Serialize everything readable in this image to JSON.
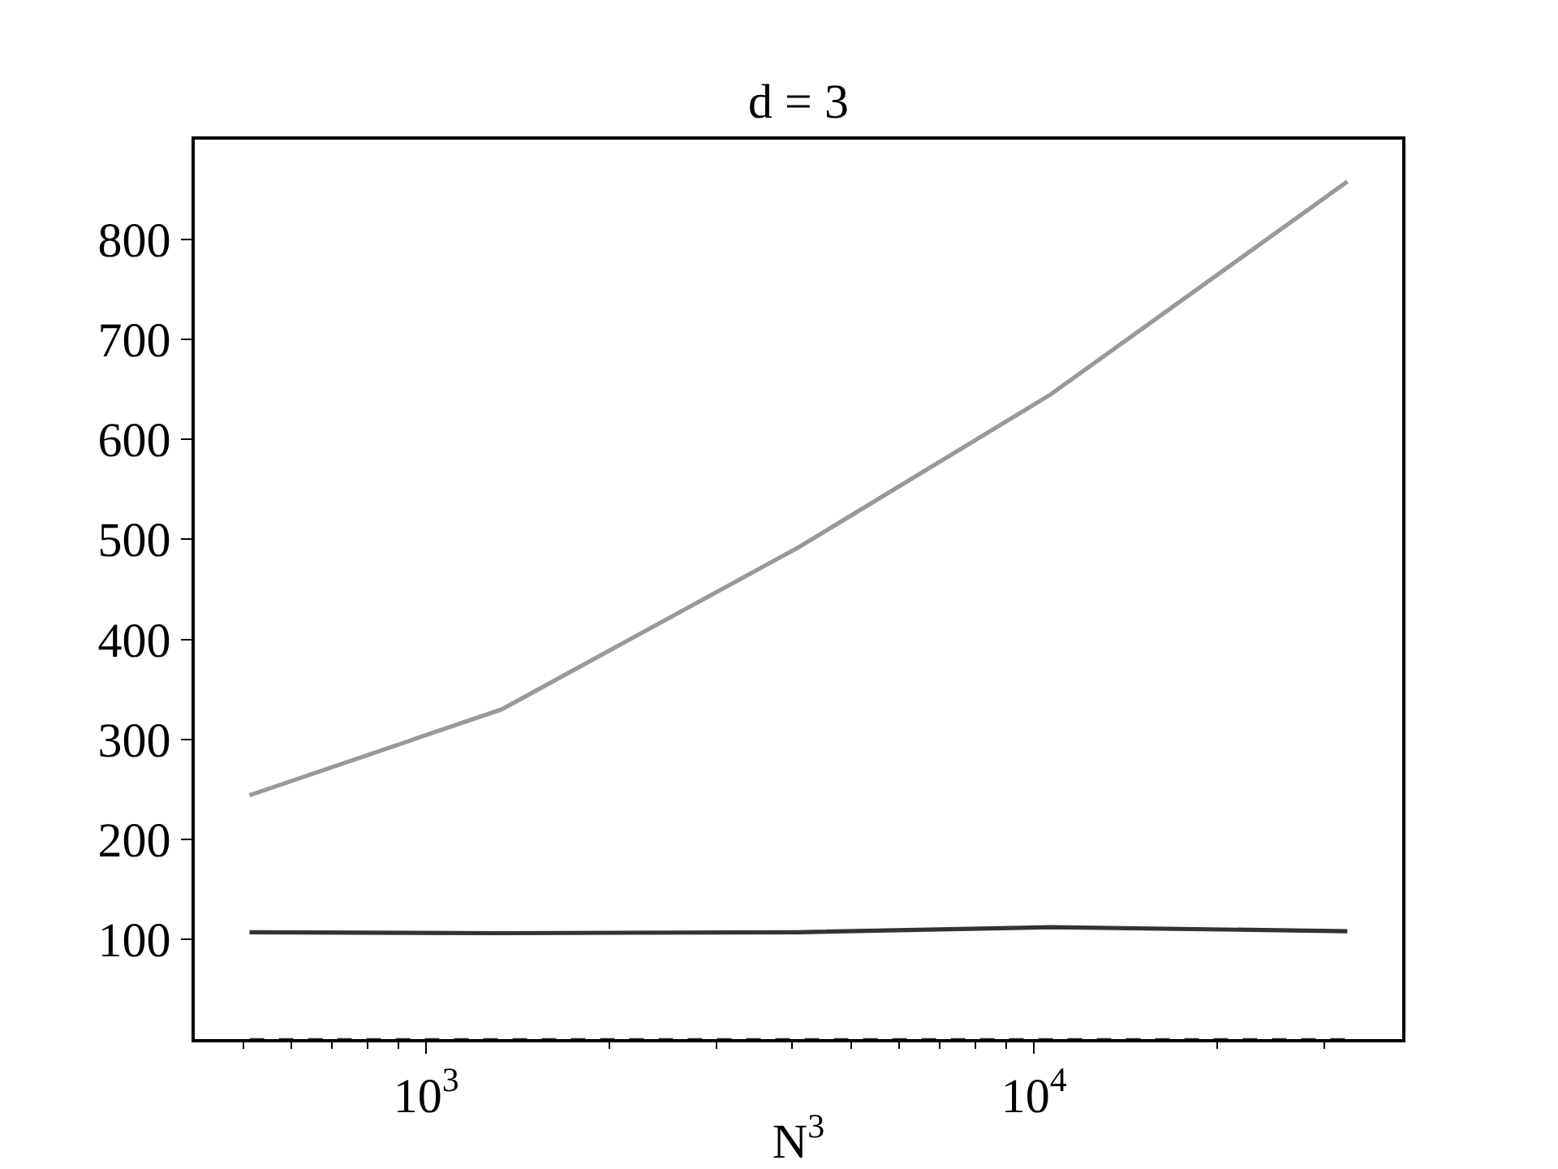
{
  "chart_data": {
    "type": "line",
    "title": "d = 3",
    "xlabel": "N$^{3}$",
    "x": [
      512,
      1331,
      4096,
      10648,
      32768
    ],
    "series": [
      {
        "color": "#999999",
        "values": [
          244,
          330,
          492,
          645,
          858
        ]
      },
      {
        "color": "#333333",
        "values": [
          107,
          106,
          107,
          112,
          108
        ]
      },
      {
        "color": "#333333",
        "line_style": "dashed",
        "values": [
          0,
          0,
          0,
          0,
          0
        ]
      }
    ],
    "log": "x",
    "xlim": [
      416,
      40340
    ],
    "xticks": [
      {
        "value": 500,
        "label": null
      },
      {
        "value": 600,
        "label": null
      },
      {
        "value": 700,
        "label": null
      },
      {
        "value": 800,
        "label": null
      },
      {
        "value": 900,
        "label": null
      },
      {
        "value": 1000,
        "label": "10$^{3}$"
      },
      {
        "value": 2000,
        "label": null
      },
      {
        "value": 3000,
        "label": null
      },
      {
        "value": 4000,
        "label": null
      },
      {
        "value": 5000,
        "label": null
      },
      {
        "value": 6000,
        "label": null
      },
      {
        "value": 7000,
        "label": null
      },
      {
        "value": 8000,
        "label": null
      },
      {
        "value": 9000,
        "label": null
      },
      {
        "value": 10000,
        "label": "10$^{4}$"
      },
      {
        "value": 20000,
        "label": null
      },
      {
        "value": 30000,
        "label": null
      }
    ],
    "ylim": [
      0,
      900
    ],
    "yticks": [
      100,
      200,
      300,
      400,
      500,
      600,
      700,
      800
    ]
  }
}
